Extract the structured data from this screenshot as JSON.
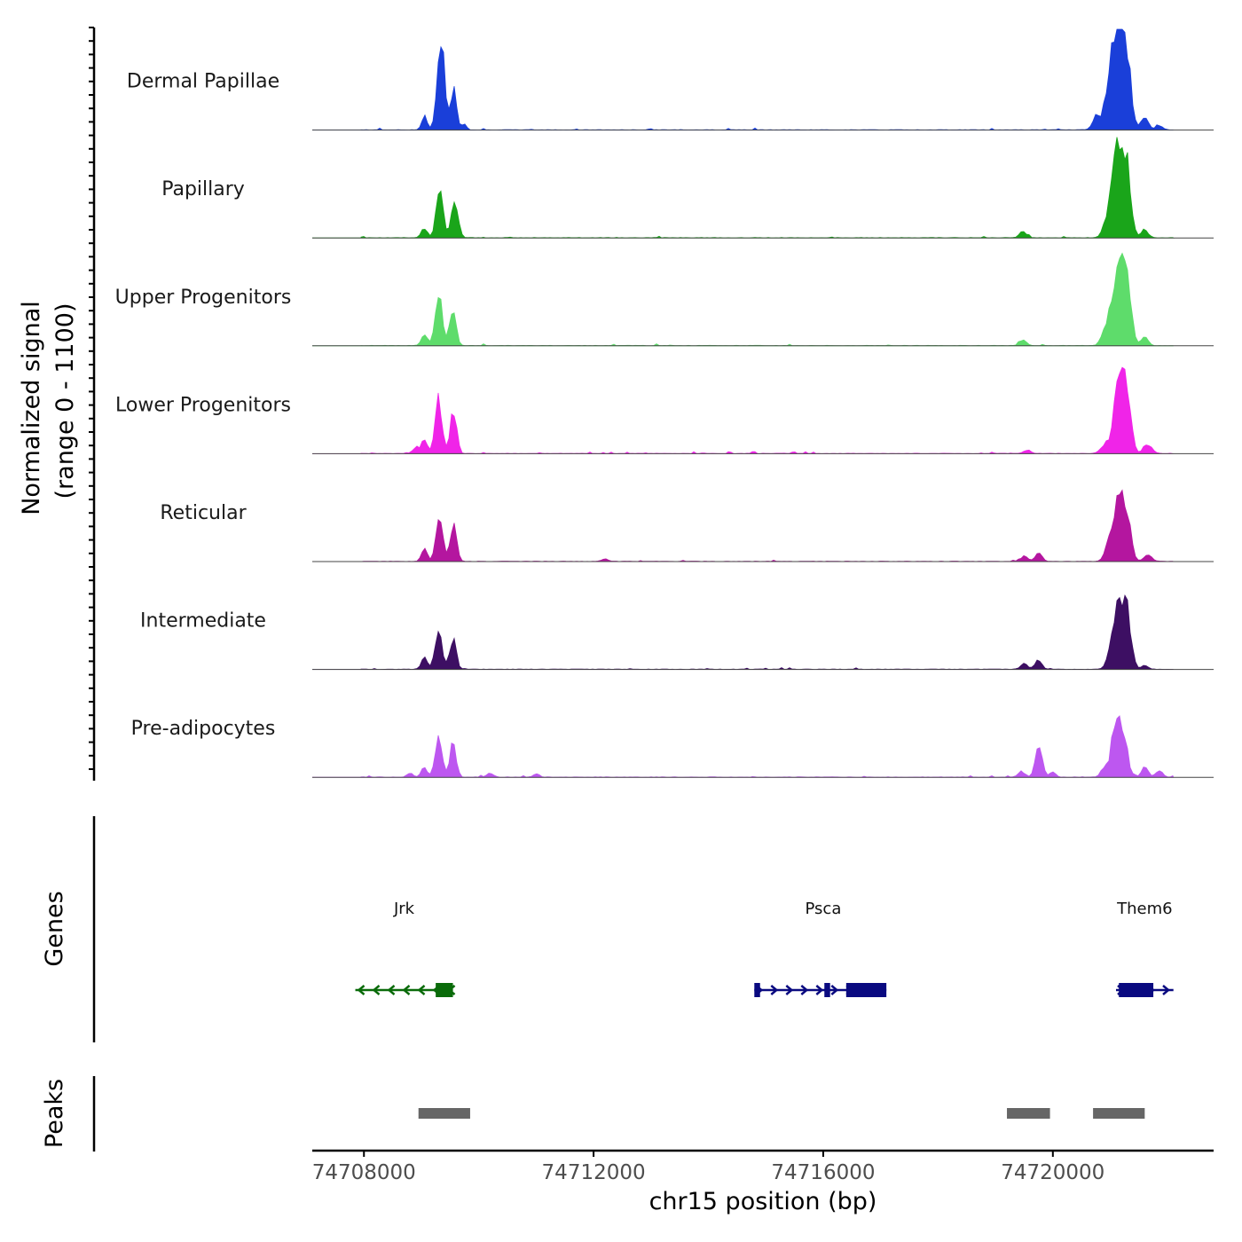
{
  "chart_data": {
    "type": "area",
    "title": "",
    "ylabel_line1": "Normalized signal",
    "ylabel_line2": "(range 0 - 1100)",
    "xlabel": "chr15 position (bp)",
    "y_range": [
      0,
      1100
    ],
    "x_range": [
      74707100,
      74722800
    ],
    "x_ticks": [
      74708000,
      74712000,
      74716000,
      74720000
    ],
    "x_tick_labels": [
      "74708000",
      "74712000",
      "74716000",
      "74720000"
    ],
    "tracks": [
      {
        "name": "Dermal Papillae",
        "color": "#1a3fd9",
        "peaks": [
          {
            "center": 74709050,
            "height": 150,
            "width": 45
          },
          {
            "center": 74709320,
            "height": 640,
            "width": 60
          },
          {
            "center": 74709380,
            "height": 400,
            "width": 45
          },
          {
            "center": 74709560,
            "height": 460,
            "width": 55
          },
          {
            "center": 74709750,
            "height": 70,
            "width": 40
          },
          {
            "center": 74720750,
            "height": 150,
            "width": 60
          },
          {
            "center": 74721000,
            "height": 550,
            "width": 90
          },
          {
            "center": 74721150,
            "height": 980,
            "width": 85
          },
          {
            "center": 74721300,
            "height": 700,
            "width": 70
          },
          {
            "center": 74721600,
            "height": 150,
            "width": 60
          },
          {
            "center": 74721850,
            "height": 50,
            "width": 60
          }
        ]
      },
      {
        "name": "Papillary",
        "color": "#1aa51a",
        "peaks": [
          {
            "center": 74709050,
            "height": 110,
            "width": 50
          },
          {
            "center": 74709320,
            "height": 500,
            "width": 60
          },
          {
            "center": 74709580,
            "height": 390,
            "width": 60
          },
          {
            "center": 74719480,
            "height": 70,
            "width": 60
          },
          {
            "center": 74721000,
            "height": 300,
            "width": 90
          },
          {
            "center": 74721150,
            "height": 980,
            "width": 85
          },
          {
            "center": 74721300,
            "height": 650,
            "width": 70
          },
          {
            "center": 74721600,
            "height": 90,
            "width": 60
          }
        ]
      },
      {
        "name": "Upper Progenitors",
        "color": "#5edc6b",
        "peaks": [
          {
            "center": 74709050,
            "height": 130,
            "width": 50
          },
          {
            "center": 74709300,
            "height": 560,
            "width": 60
          },
          {
            "center": 74709550,
            "height": 410,
            "width": 55
          },
          {
            "center": 74719480,
            "height": 60,
            "width": 60
          },
          {
            "center": 74720950,
            "height": 250,
            "width": 80
          },
          {
            "center": 74721150,
            "height": 960,
            "width": 85
          },
          {
            "center": 74721300,
            "height": 600,
            "width": 70
          },
          {
            "center": 74721600,
            "height": 90,
            "width": 60
          }
        ]
      },
      {
        "name": "Lower Progenitors",
        "color": "#f024e8",
        "peaks": [
          {
            "center": 74708900,
            "height": 60,
            "width": 50
          },
          {
            "center": 74709050,
            "height": 150,
            "width": 50
          },
          {
            "center": 74709300,
            "height": 580,
            "width": 60
          },
          {
            "center": 74709560,
            "height": 470,
            "width": 55
          },
          {
            "center": 74719550,
            "height": 40,
            "width": 60
          },
          {
            "center": 74720900,
            "height": 100,
            "width": 70
          },
          {
            "center": 74721150,
            "height": 840,
            "width": 85
          },
          {
            "center": 74721300,
            "height": 520,
            "width": 70
          },
          {
            "center": 74721650,
            "height": 100,
            "width": 70
          }
        ]
      },
      {
        "name": "Reticular",
        "color": "#b4169f",
        "peaks": [
          {
            "center": 74709050,
            "height": 140,
            "width": 50
          },
          {
            "center": 74709320,
            "height": 480,
            "width": 60
          },
          {
            "center": 74709560,
            "height": 380,
            "width": 55
          },
          {
            "center": 74712200,
            "height": 30,
            "width": 50
          },
          {
            "center": 74719500,
            "height": 60,
            "width": 60
          },
          {
            "center": 74719750,
            "height": 90,
            "width": 60
          },
          {
            "center": 74721000,
            "height": 200,
            "width": 80
          },
          {
            "center": 74721150,
            "height": 640,
            "width": 85
          },
          {
            "center": 74721300,
            "height": 400,
            "width": 70
          },
          {
            "center": 74721650,
            "height": 70,
            "width": 70
          }
        ]
      },
      {
        "name": "Intermediate",
        "color": "#3d0f63",
        "peaks": [
          {
            "center": 74709050,
            "height": 120,
            "width": 50
          },
          {
            "center": 74709300,
            "height": 440,
            "width": 60
          },
          {
            "center": 74709550,
            "height": 340,
            "width": 55
          },
          {
            "center": 74719500,
            "height": 60,
            "width": 60
          },
          {
            "center": 74719750,
            "height": 90,
            "width": 60
          },
          {
            "center": 74721000,
            "height": 100,
            "width": 70
          },
          {
            "center": 74721150,
            "height": 660,
            "width": 90
          },
          {
            "center": 74721300,
            "height": 500,
            "width": 70
          },
          {
            "center": 74721600,
            "height": 40,
            "width": 60
          }
        ]
      },
      {
        "name": "Pre-adipocytes",
        "color": "#bd57f0",
        "peaks": [
          {
            "center": 74708800,
            "height": 40,
            "width": 50
          },
          {
            "center": 74709050,
            "height": 120,
            "width": 50
          },
          {
            "center": 74709300,
            "height": 400,
            "width": 60
          },
          {
            "center": 74709550,
            "height": 380,
            "width": 55
          },
          {
            "center": 74710200,
            "height": 40,
            "width": 60
          },
          {
            "center": 74711000,
            "height": 40,
            "width": 50
          },
          {
            "center": 74719450,
            "height": 60,
            "width": 60
          },
          {
            "center": 74719760,
            "height": 340,
            "width": 60
          },
          {
            "center": 74720000,
            "height": 60,
            "width": 50
          },
          {
            "center": 74720900,
            "height": 110,
            "width": 60
          },
          {
            "center": 74721100,
            "height": 680,
            "width": 70
          },
          {
            "center": 74721250,
            "height": 400,
            "width": 60
          },
          {
            "center": 74721600,
            "height": 110,
            "width": 60
          },
          {
            "center": 74721850,
            "height": 70,
            "width": 60
          }
        ]
      }
    ],
    "genes_label": "Genes",
    "genes": [
      {
        "name": "Jrk",
        "label_center": 74708700,
        "strand": "-",
        "start": 74707850,
        "end": 74709550,
        "color": "#0a6b0a",
        "blocks": [
          [
            74709250,
            74709550,
            "thick"
          ]
        ]
      },
      {
        "name": "Psca",
        "label_center": 74716000,
        "strand": "+",
        "start": 74714800,
        "end": 74717100,
        "color": "#0a0a80",
        "blocks": [
          [
            74714800,
            74714900,
            "thin"
          ],
          [
            74716020,
            74716120,
            "thin"
          ],
          [
            74716400,
            74717100,
            "thick"
          ]
        ]
      },
      {
        "name": "Them6",
        "label_center": 74721600,
        "strand": "+",
        "start": 74721100,
        "end": 74722100,
        "color": "#0a0a80",
        "blocks": [
          [
            74721150,
            74721750,
            "thick"
          ]
        ]
      }
    ],
    "peaks_label": "Peaks",
    "peak_regions": [
      {
        "start": 74708950,
        "end": 74709850
      },
      {
        "start": 74719200,
        "end": 74719950
      },
      {
        "start": 74720700,
        "end": 74721600
      }
    ]
  }
}
